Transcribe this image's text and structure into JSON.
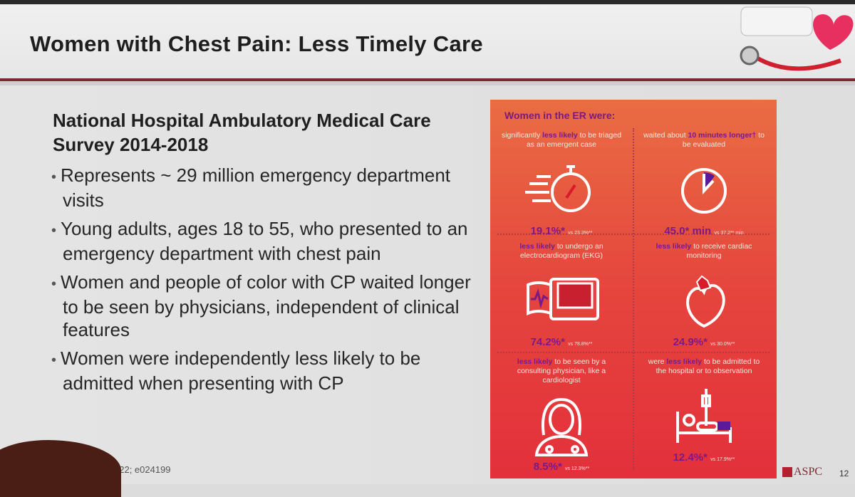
{
  "slide": {
    "title": "Women with Chest Pain: Less Timely Care",
    "page_number": "12",
    "logo_text": "ASPC",
    "citation": "022; e024199"
  },
  "content": {
    "subheading": "National Hospital Ambulatory Medical Care Survey 2014-2018",
    "bullets": [
      "Represents ~ 29 million emergency department visits",
      "Young adults, ages 18 to 55, who presented to an emergency department with chest pain",
      "Women and people of color with CP waited longer to be seen by physicians, independent of clinical features",
      "Women were independently less likely to be admitted when presenting with CP"
    ]
  },
  "infographic": {
    "title": "Women in the ER were:",
    "colors": {
      "accent": "#7a1a8a",
      "top": "#e96d43",
      "bottom": "#e3303c"
    },
    "cells": [
      {
        "pre": "significantly ",
        "hl": "less likely",
        "post": " to be triaged as an emergent case",
        "value": "19.1%*",
        "compare": "vs 23.3%**",
        "icon": "stopwatch-icon"
      },
      {
        "pre": "waited about ",
        "hl": "10 minutes longer†",
        "post": " to be evaluated",
        "value": "45.0* min",
        "compare": "vs 37.2** min",
        "icon": "clock-icon"
      },
      {
        "pre": "",
        "hl": "less likely",
        "post": " to undergo an electrocardiogram (EKG)",
        "value": "74.2%*",
        "compare": "vs 78.8%**",
        "icon": "ekg-machine-icon"
      },
      {
        "pre": "",
        "hl": "less likely",
        "post": " to receive cardiac monitoring",
        "value": "24.9%*",
        "compare": "vs 30.0%**",
        "icon": "heart-icon"
      },
      {
        "pre": "",
        "hl": "less likely",
        "post": " to be seen by a consulting physician, like a cardiologist",
        "value": "8.5%*",
        "compare": "vs 12.3%**",
        "icon": "female-doctor-icon"
      },
      {
        "pre": "were ",
        "hl": "less likely",
        "post": " to be admitted to the hospital or to observation",
        "value": "12.4%*",
        "compare": "vs 17.9%**",
        "icon": "hospital-bed-icon"
      }
    ]
  }
}
